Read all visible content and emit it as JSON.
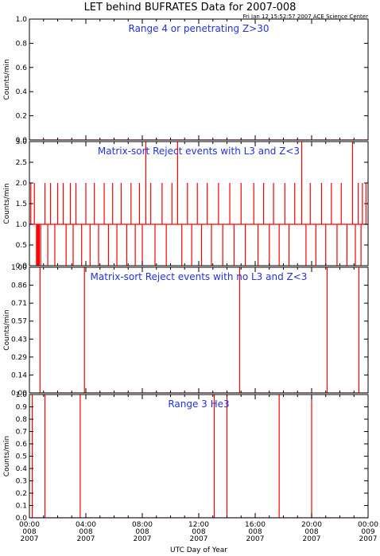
{
  "figure": {
    "title": "LET behind BUFRATES Data for 2007-008",
    "subtitle": "Fri Jan 12 15:52:57 2007 ACE Science Center",
    "xlabel": "UTC Day of Year",
    "line_color": "#ff0000",
    "annotation_color": "#2233dd"
  },
  "chart_data": [
    {
      "type": "line",
      "title": "Range 4 or   penetrating Z>30",
      "ylabel": "Counts/min",
      "ylim": [
        0,
        1.0
      ],
      "yticks": [
        "0.0",
        "0.2",
        "0.4",
        "0.6",
        "0.8",
        "1.0"
      ],
      "xlim": [
        0,
        24
      ],
      "baseline": 0,
      "spikes": []
    },
    {
      "type": "line",
      "title": "Matrix-sort Reject events with L3 and Z<3",
      "ylabel": "Counts/min",
      "ylim": [
        0,
        3.0
      ],
      "yticks": [
        "0.0",
        "0.5",
        "1.0",
        "1.5",
        "2.0",
        "2.5",
        "3.0"
      ],
      "xlim": [
        0,
        24
      ],
      "baseline": 1,
      "spikes": [
        {
          "x": 8.25,
          "y": 3
        },
        {
          "x": 10.5,
          "y": 3
        },
        {
          "x": 19.3,
          "y": 3
        },
        {
          "x": 22.9,
          "y": 3
        },
        {
          "x": 0.1,
          "y": 2
        },
        {
          "x": 0.35,
          "y": 2
        },
        {
          "x": 1.1,
          "y": 2
        },
        {
          "x": 1.5,
          "y": 2
        },
        {
          "x": 2.0,
          "y": 2
        },
        {
          "x": 2.4,
          "y": 2
        },
        {
          "x": 2.9,
          "y": 2
        },
        {
          "x": 3.3,
          "y": 2
        },
        {
          "x": 4.0,
          "y": 2
        },
        {
          "x": 4.6,
          "y": 2
        },
        {
          "x": 5.3,
          "y": 2
        },
        {
          "x": 5.9,
          "y": 2
        },
        {
          "x": 6.5,
          "y": 2
        },
        {
          "x": 7.2,
          "y": 2
        },
        {
          "x": 7.8,
          "y": 2
        },
        {
          "x": 8.6,
          "y": 2
        },
        {
          "x": 9.4,
          "y": 2
        },
        {
          "x": 10.1,
          "y": 2
        },
        {
          "x": 11.2,
          "y": 2
        },
        {
          "x": 11.9,
          "y": 2
        },
        {
          "x": 12.6,
          "y": 2
        },
        {
          "x": 13.4,
          "y": 2
        },
        {
          "x": 14.2,
          "y": 2
        },
        {
          "x": 15.0,
          "y": 2
        },
        {
          "x": 15.9,
          "y": 2
        },
        {
          "x": 16.6,
          "y": 2
        },
        {
          "x": 17.3,
          "y": 2
        },
        {
          "x": 18.1,
          "y": 2
        },
        {
          "x": 18.8,
          "y": 2
        },
        {
          "x": 19.9,
          "y": 2
        },
        {
          "x": 20.7,
          "y": 2
        },
        {
          "x": 21.4,
          "y": 2
        },
        {
          "x": 22.1,
          "y": 2
        },
        {
          "x": 23.3,
          "y": 2
        },
        {
          "x": 23.6,
          "y": 2
        },
        {
          "x": 23.85,
          "y": 2
        }
      ],
      "gaps": [
        {
          "x": 0.5,
          "y": 0
        },
        {
          "x": 0.55,
          "y": 0
        },
        {
          "x": 0.6,
          "y": 0
        },
        {
          "x": 0.65,
          "y": 0
        },
        {
          "x": 0.7,
          "y": 0
        },
        {
          "x": 0.8,
          "y": 0
        },
        {
          "x": 1.3,
          "y": 0
        },
        {
          "x": 1.8,
          "y": 0
        },
        {
          "x": 2.6,
          "y": 0
        },
        {
          "x": 3.1,
          "y": 0
        },
        {
          "x": 3.7,
          "y": 0
        },
        {
          "x": 4.3,
          "y": 0
        },
        {
          "x": 4.9,
          "y": 0
        },
        {
          "x": 5.6,
          "y": 0
        },
        {
          "x": 6.2,
          "y": 0
        },
        {
          "x": 6.9,
          "y": 0
        },
        {
          "x": 7.5,
          "y": 0
        },
        {
          "x": 8.0,
          "y": 0
        },
        {
          "x": 8.9,
          "y": 0
        },
        {
          "x": 9.7,
          "y": 0
        },
        {
          "x": 10.8,
          "y": 0
        },
        {
          "x": 11.5,
          "y": 0
        },
        {
          "x": 12.2,
          "y": 0
        },
        {
          "x": 12.9,
          "y": 0
        },
        {
          "x": 13.7,
          "y": 0
        },
        {
          "x": 14.5,
          "y": 0
        },
        {
          "x": 15.3,
          "y": 0
        },
        {
          "x": 16.2,
          "y": 0
        },
        {
          "x": 17.0,
          "y": 0
        },
        {
          "x": 17.7,
          "y": 0
        },
        {
          "x": 18.4,
          "y": 0
        },
        {
          "x": 19.6,
          "y": 0
        },
        {
          "x": 20.3,
          "y": 0
        },
        {
          "x": 21.0,
          "y": 0
        },
        {
          "x": 21.8,
          "y": 0
        },
        {
          "x": 22.5,
          "y": 0
        },
        {
          "x": 23.1,
          "y": 0
        },
        {
          "x": 23.5,
          "y": 0
        }
      ]
    },
    {
      "type": "line",
      "title": "Matrix-sort Reject events with no L3 and Z<3",
      "ylabel": "Counts/min",
      "ylim": [
        0,
        1.0
      ],
      "yticks": [
        "0.00",
        "0.14",
        "0.29",
        "0.43",
        "0.57",
        "0.71",
        "0.86",
        "1.00"
      ],
      "xlim": [
        0,
        24
      ],
      "baseline": 0,
      "spikes": [
        {
          "x": 0.75,
          "y": 1
        },
        {
          "x": 3.9,
          "y": 1
        },
        {
          "x": 14.9,
          "y": 1
        },
        {
          "x": 21.1,
          "y": 1
        },
        {
          "x": 23.35,
          "y": 1
        }
      ]
    },
    {
      "type": "line",
      "title": "Range 3 He3",
      "ylabel": "Counts/min",
      "ylim": [
        0,
        1.0
      ],
      "yticks": [
        "0.0",
        "0.1",
        "0.2",
        "0.3",
        "0.4",
        "0.5",
        "0.6",
        "0.7",
        "0.8",
        "0.9",
        "1.0"
      ],
      "xlim": [
        0,
        24
      ],
      "baseline": 0,
      "spikes": [
        {
          "x": 0.2,
          "y": 1
        },
        {
          "x": 1.1,
          "y": 1
        },
        {
          "x": 3.6,
          "y": 1
        },
        {
          "x": 13.1,
          "y": 1
        },
        {
          "x": 14.0,
          "y": 1
        },
        {
          "x": 17.7,
          "y": 1
        },
        {
          "x": 20.0,
          "y": 1
        }
      ]
    }
  ],
  "xticks": [
    {
      "x": 0,
      "lines": [
        "00:00",
        "008",
        "2007"
      ]
    },
    {
      "x": 4,
      "lines": [
        "04:00",
        "008",
        "2007"
      ]
    },
    {
      "x": 8,
      "lines": [
        "08:00",
        "008",
        "2007"
      ]
    },
    {
      "x": 12,
      "lines": [
        "12:00",
        "008",
        "2007"
      ]
    },
    {
      "x": 16,
      "lines": [
        "16:00",
        "008",
        "2007"
      ]
    },
    {
      "x": 20,
      "lines": [
        "20:00",
        "008",
        "2007"
      ]
    },
    {
      "x": 24,
      "lines": [
        "00:00",
        "009",
        "2007"
      ]
    }
  ]
}
